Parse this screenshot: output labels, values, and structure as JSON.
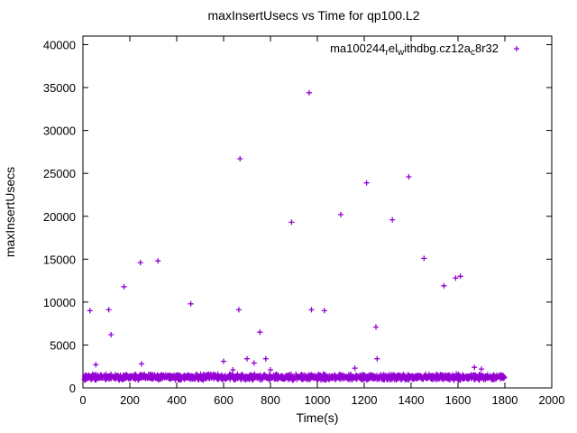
{
  "chart_data": {
    "type": "scatter",
    "title": "maxInsertUsecs vs Time for qp100.L2",
    "xlabel": "Time(s)",
    "ylabel": "maxInsertUsecs",
    "xlim": [
      0,
      2000
    ],
    "ylim": [
      0,
      40000
    ],
    "xticks": [
      0,
      200,
      400,
      600,
      800,
      1000,
      1200,
      1400,
      1600,
      1800,
      2000
    ],
    "yticks": [
      0,
      5000,
      10000,
      15000,
      20000,
      25000,
      30000,
      35000,
      40000
    ],
    "grid": false,
    "marker": "plus",
    "marker_color": "#9400d3",
    "legend": {
      "position": "top-right-inside",
      "label_plain": "ma100244_rel_withdbg.cz12a_c8r32",
      "segments": [
        {
          "t": "ma100244"
        },
        {
          "t": "r",
          "sub": true
        },
        {
          "t": "el"
        },
        {
          "t": "w",
          "sub": true
        },
        {
          "t": "ithdbg.cz12a"
        },
        {
          "t": "c",
          "sub": true
        },
        {
          "t": "8r32"
        }
      ]
    },
    "outliers": [
      [
        30,
        9000
      ],
      [
        55,
        2700
      ],
      [
        110,
        9100
      ],
      [
        120,
        6200
      ],
      [
        175,
        11800
      ],
      [
        245,
        14600
      ],
      [
        250,
        2800
      ],
      [
        320,
        14800
      ],
      [
        460,
        9800
      ],
      [
        600,
        3100
      ],
      [
        640,
        2100
      ],
      [
        665,
        9100
      ],
      [
        670,
        26700
      ],
      [
        700,
        3400
      ],
      [
        730,
        2900
      ],
      [
        755,
        6500
      ],
      [
        780,
        3400
      ],
      [
        800,
        2100
      ],
      [
        890,
        19300
      ],
      [
        965,
        34400
      ],
      [
        975,
        9100
      ],
      [
        1030,
        9000
      ],
      [
        1100,
        20200
      ],
      [
        1160,
        2300
      ],
      [
        1210,
        23900
      ],
      [
        1250,
        7100
      ],
      [
        1255,
        3400
      ],
      [
        1320,
        19600
      ],
      [
        1390,
        24600
      ],
      [
        1455,
        15100
      ],
      [
        1540,
        11900
      ],
      [
        1590,
        12800
      ],
      [
        1610,
        13000
      ],
      [
        1670,
        2400
      ],
      [
        1700,
        2200
      ]
    ],
    "baseline_band": {
      "x_min": 5,
      "x_max": 1800,
      "y_center": 1250,
      "y_jitter": 380,
      "count": 1500,
      "seed": 12345
    }
  }
}
